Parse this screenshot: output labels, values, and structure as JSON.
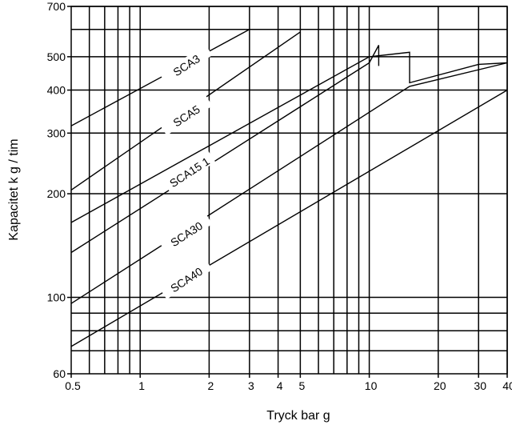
{
  "chart_data": {
    "type": "line",
    "title": "",
    "xlabel": "Tryck bar g",
    "ylabel": "Kapacitet k g / tim",
    "xscale": "log",
    "yscale": "log",
    "xlim": [
      0.5,
      40
    ],
    "ylim": [
      60,
      700
    ],
    "grid": true,
    "x_ticks": [
      {
        "value": 0.5,
        "label": "0.5"
      },
      {
        "value": 1,
        "label": "1"
      },
      {
        "value": 2,
        "label": "2"
      },
      {
        "value": 3,
        "label": "3"
      },
      {
        "value": 4,
        "label": "4"
      },
      {
        "value": 5,
        "label": "5"
      },
      {
        "value": 10,
        "label": "10"
      },
      {
        "value": 20,
        "label": "20"
      },
      {
        "value": 30,
        "label": "30"
      },
      {
        "value": 40,
        "label": "40"
      }
    ],
    "y_ticks": [
      {
        "value": 60,
        "label": "60"
      },
      {
        "value": 100,
        "label": "100"
      },
      {
        "value": 200,
        "label": "200"
      },
      {
        "value": 300,
        "label": "300"
      },
      {
        "value": 400,
        "label": "400"
      },
      {
        "value": 500,
        "label": "500"
      },
      {
        "value": 700,
        "label": "700"
      }
    ],
    "x_gridlines": [
      0.6,
      0.7,
      0.8,
      0.9,
      1,
      2,
      3,
      4,
      5,
      6,
      7,
      8,
      9,
      10,
      20,
      30,
      40
    ],
    "y_gridlines": [
      70,
      80,
      90,
      100,
      200,
      300,
      400,
      500,
      600,
      700
    ],
    "series": [
      {
        "name": "SCA3",
        "points": [
          [
            0.5,
            315
          ],
          [
            3,
            600
          ]
        ]
      },
      {
        "name": "SCA5",
        "points": [
          [
            0.5,
            205
          ],
          [
            5,
            590
          ]
        ]
      },
      {
        "name": "SCA15",
        "points": [
          [
            0.5,
            165
          ],
          [
            10,
            500
          ],
          [
            15,
            515
          ],
          [
            15,
            420
          ],
          [
            30,
            475
          ],
          [
            40,
            480
          ]
        ]
      },
      {
        "name": "SCA30",
        "points": [
          [
            0.5,
            135
          ],
          [
            10,
            480
          ],
          [
            11,
            540
          ],
          [
            11,
            470
          ]
        ]
      },
      {
        "name": "SCA40",
        "points": [
          [
            0.5,
            96
          ],
          [
            15,
            410
          ],
          [
            40,
            480
          ]
        ]
      },
      {
        "name": "",
        "points": [
          [
            0.5,
            72
          ],
          [
            40,
            400
          ]
        ]
      }
    ],
    "series_labels": [
      {
        "text": "SCA3",
        "x": 1.6,
        "y": 470,
        "angle": -33
      },
      {
        "text": "SCA5",
        "x": 1.6,
        "y": 335,
        "angle": -33
      },
      {
        "text": "SCA15 1",
        "x": 1.65,
        "y": 230,
        "angle": -33
      },
      {
        "text": "SCA30",
        "x": 1.6,
        "y": 152,
        "angle": -33
      },
      {
        "text": "SCA40",
        "x": 1.6,
        "y": 112,
        "angle": -33
      }
    ]
  }
}
